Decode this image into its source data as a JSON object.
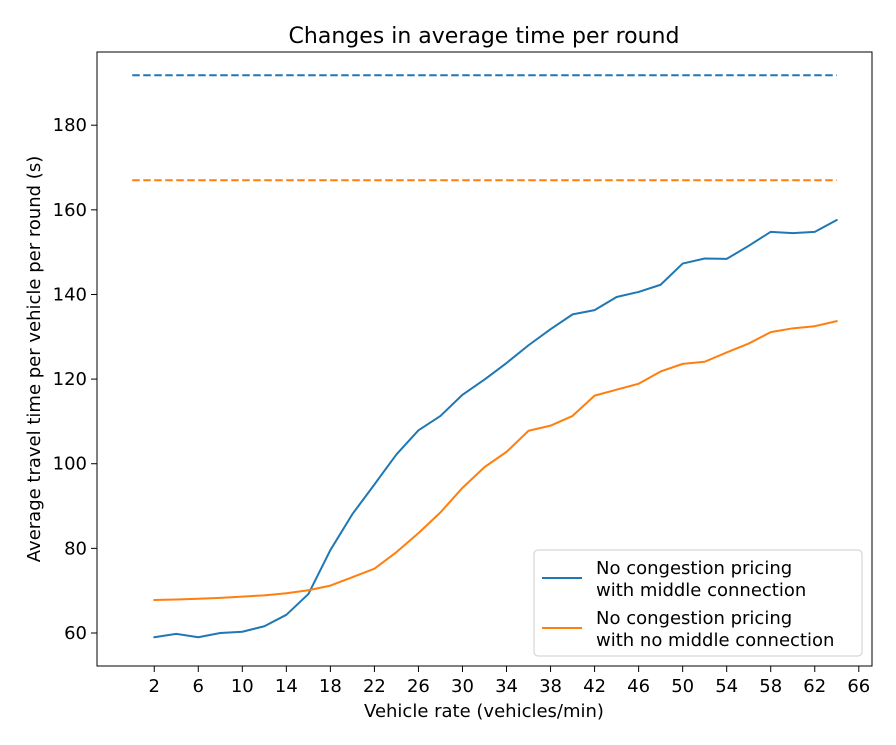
{
  "chart_data": {
    "type": "line",
    "title": "Changes in average time per round",
    "xlabel": "Vehicle rate (vehicles/min)",
    "ylabel": "Average travel time per vehicle per round (s)",
    "xlim": [
      -3.2,
      67.2
    ],
    "ylim": [
      52.2,
      197.3
    ],
    "xticks": [
      2,
      6,
      10,
      14,
      18,
      22,
      26,
      30,
      34,
      38,
      42,
      46,
      50,
      54,
      58,
      62,
      66
    ],
    "yticks": [
      60,
      80,
      100,
      120,
      140,
      160,
      180
    ],
    "grid": false,
    "legend_position": "lower-right",
    "series": [
      {
        "name": "No congestion pricing\nwith middle connection",
        "color": "#1f77b4",
        "style": "solid",
        "x": [
          2,
          4,
          6,
          8,
          10,
          12,
          14,
          16,
          18,
          20,
          22,
          24,
          26,
          28,
          30,
          32,
          34,
          36,
          38,
          40,
          42,
          44,
          46,
          48,
          50,
          52,
          54,
          56,
          58,
          60,
          62,
          64
        ],
        "values": [
          59.0,
          59.8,
          59.0,
          60.0,
          60.3,
          61.6,
          64.3,
          69.2,
          79.6,
          88.1,
          95.1,
          102.2,
          107.9,
          111.3,
          116.3,
          119.9,
          123.8,
          128.0,
          131.8,
          135.3,
          136.3,
          139.4,
          140.6,
          142.3,
          147.3,
          148.5,
          148.4,
          151.5,
          154.8,
          154.5,
          154.8,
          157.6
        ]
      },
      {
        "name": "No congestion pricing\nwith no middle connection",
        "color": "#ff7f0e",
        "style": "solid",
        "x": [
          2,
          4,
          6,
          8,
          10,
          12,
          14,
          16,
          18,
          20,
          22,
          24,
          26,
          28,
          30,
          32,
          34,
          36,
          38,
          40,
          42,
          44,
          46,
          48,
          50,
          52,
          54,
          56,
          58,
          60,
          62,
          64
        ],
        "values": [
          67.8,
          67.9,
          68.1,
          68.3,
          68.6,
          68.9,
          69.4,
          70.1,
          71.2,
          73.2,
          75.2,
          79.1,
          83.6,
          88.5,
          94.3,
          99.2,
          102.8,
          107.8,
          109.0,
          111.3,
          116.1,
          117.5,
          118.9,
          121.8,
          123.6,
          124.1,
          126.3,
          128.4,
          131.1,
          132.0,
          132.5,
          133.7
        ]
      },
      {
        "color": "#1f77b4",
        "style": "dashed",
        "x": [
          0,
          64
        ],
        "values": [
          191.8,
          191.8
        ]
      },
      {
        "color": "#ff7f0e",
        "style": "dashed",
        "x": [
          0,
          64
        ],
        "values": [
          167.0,
          167.0
        ]
      }
    ]
  }
}
